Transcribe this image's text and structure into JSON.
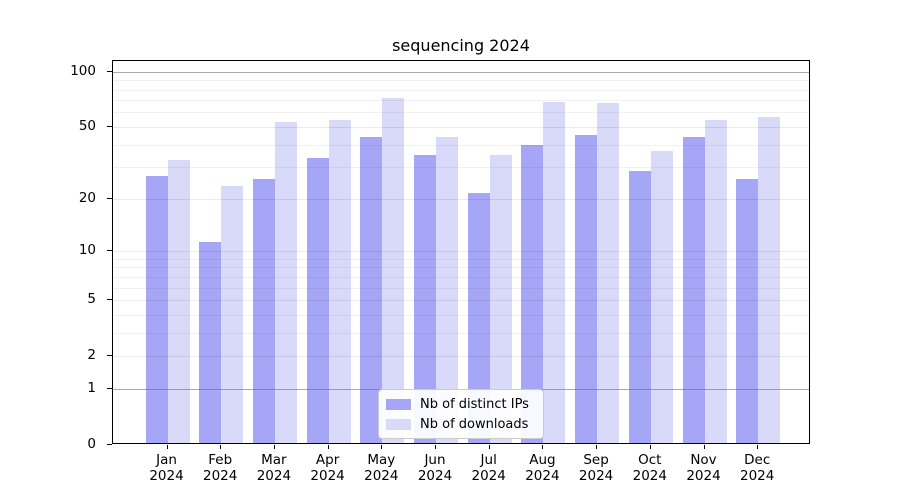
{
  "title": "sequencing 2024",
  "colors": {
    "distinct_ips_bar": "#a6a6f7",
    "downloads_bar": "#d9d9fa",
    "axis": "#000000",
    "grid_strong": "#9c9c9c",
    "grid_major": "#e6e6e6",
    "grid_minor": "#eeeeee",
    "background": "#ffffff",
    "legend_border": "#cbcbcb"
  },
  "legend": {
    "entries": [
      {
        "label": "Nb of distinct IPs",
        "color": "#a6a6f7"
      },
      {
        "label": "Nb of downloads",
        "color": "#d9d9fa"
      }
    ]
  },
  "chart_data": {
    "type": "bar",
    "title": "sequencing 2024",
    "categories": [
      "Jan 2024",
      "Feb 2024",
      "Mar 2024",
      "Apr 2024",
      "May 2024",
      "Jun 2024",
      "Jul 2024",
      "Aug 2024",
      "Sep 2024",
      "Oct 2024",
      "Nov 2024",
      "Dec 2024"
    ],
    "series": [
      {
        "name": "Nb of distinct IPs",
        "color": "#a6a6f7",
        "values": [
          26,
          11,
          25,
          33,
          43,
          34,
          21,
          39,
          44,
          28,
          43,
          25
        ]
      },
      {
        "name": "Nb of downloads",
        "color": "#d9d9fa",
        "values": [
          32,
          23,
          52,
          53,
          70,
          43,
          34,
          67,
          66,
          36,
          53,
          55
        ]
      }
    ],
    "xlabel": "",
    "ylabel": "",
    "yscale": "log1p",
    "ylim": [
      0,
      110
    ],
    "yticks": [
      0,
      1,
      2,
      5,
      10,
      20,
      50,
      100
    ],
    "minor_yticks": [
      3,
      4,
      6,
      7,
      8,
      9,
      30,
      40,
      60,
      70,
      80,
      90
    ],
    "emphasized_gridlines": [
      1,
      100
    ],
    "grid": true,
    "legend_position": "lower center"
  }
}
